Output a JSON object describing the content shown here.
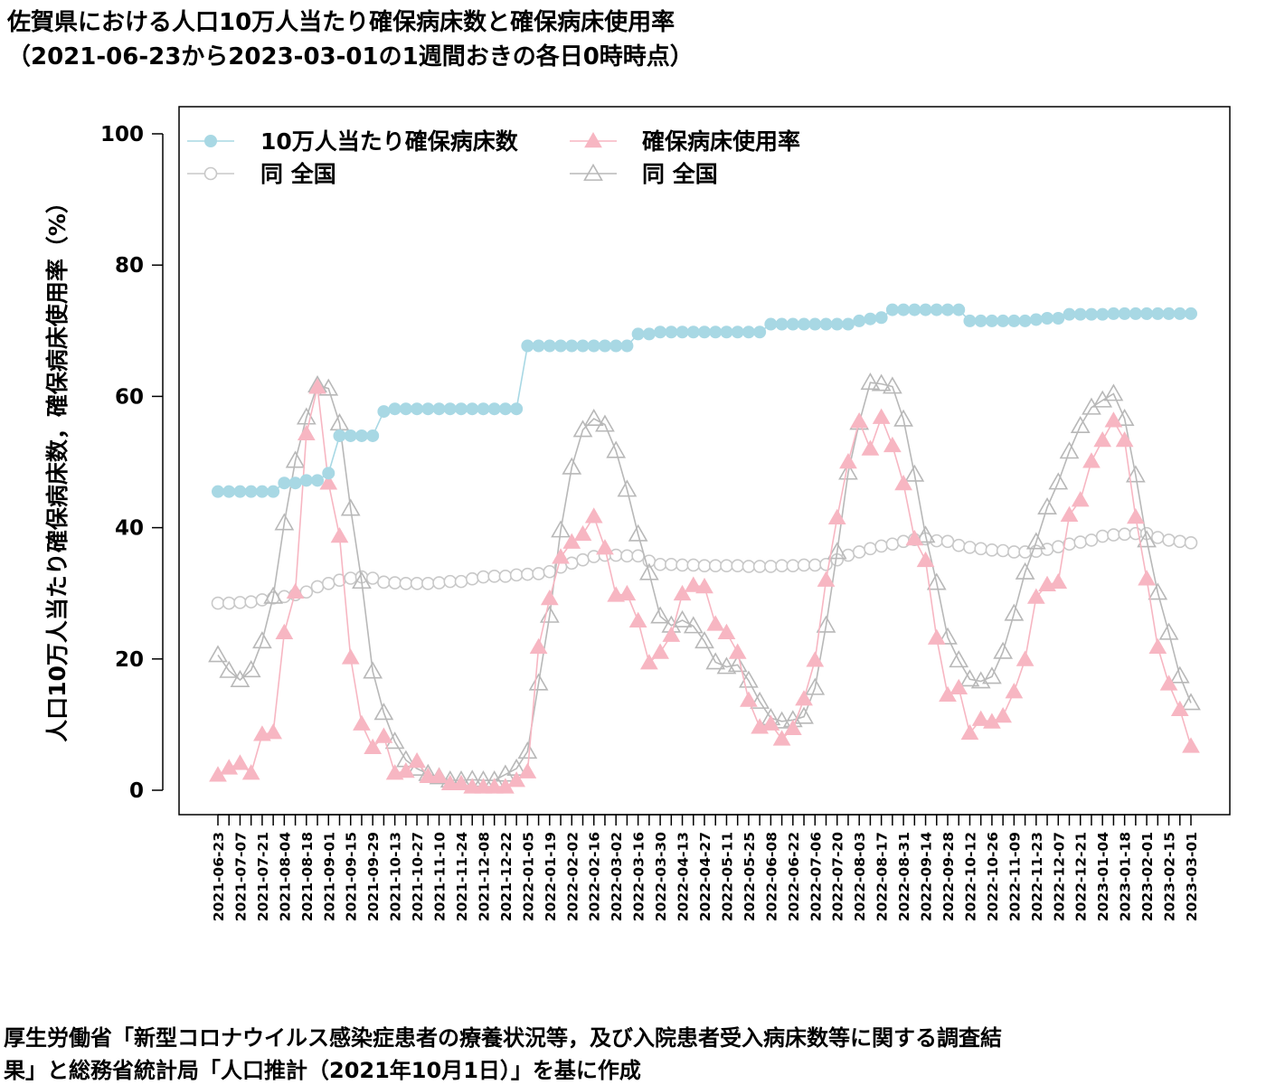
{
  "header": {
    "title_line1": "佐賀県における人口10万人当たり確保病床数と確保病床使用率",
    "title_line2": "（2021-06-23から2023-03-01の1週間おきの各日0時時点）"
  },
  "footer": {
    "source_line1": "厚生労働省「新型コロナウイルス感染症患者の療養状況等，及び入院患者受入病床数等に関する調査結",
    "source_line2": "果」と総務省統計局「人口推計（2021年10月1日）」を基に作成"
  },
  "chart_data": {
    "type": "line",
    "ylabel": "人口10万人当たり確保病床数，確保病床使用率（%）",
    "ylim": [
      0,
      100
    ],
    "yticks": [
      0,
      20,
      40,
      60,
      80,
      100
    ],
    "grid": false,
    "legend_position": "top-left",
    "x_tick_labels": [
      "2021-06-23",
      "2021-07-07",
      "2021-07-21",
      "2021-08-04",
      "2021-08-18",
      "2021-09-01",
      "2021-09-15",
      "2021-09-29",
      "2021-10-13",
      "2021-10-27",
      "2021-11-10",
      "2021-11-24",
      "2021-12-08",
      "2021-12-22",
      "2022-01-05",
      "2022-01-19",
      "2022-02-02",
      "2022-02-16",
      "2022-03-02",
      "2022-03-16",
      "2022-03-30",
      "2022-04-13",
      "2022-04-27",
      "2022-05-11",
      "2022-05-25",
      "2022-06-08",
      "2022-06-22",
      "2022-07-06",
      "2022-07-20",
      "2022-08-03",
      "2022-08-17",
      "2022-08-31",
      "2022-09-14",
      "2022-09-28",
      "2022-10-12",
      "2022-10-26",
      "2022-11-09",
      "2022-11-23",
      "2022-12-07",
      "2022-12-21",
      "2023-01-04",
      "2023-01-18",
      "2023-02-01",
      "2023-02-15",
      "2023-03-01"
    ],
    "x": [
      "2021-06-23",
      "2021-06-30",
      "2021-07-07",
      "2021-07-14",
      "2021-07-21",
      "2021-07-28",
      "2021-08-04",
      "2021-08-11",
      "2021-08-18",
      "2021-08-25",
      "2021-09-01",
      "2021-09-08",
      "2021-09-15",
      "2021-09-22",
      "2021-09-29",
      "2021-10-06",
      "2021-10-13",
      "2021-10-20",
      "2021-10-27",
      "2021-11-03",
      "2021-11-10",
      "2021-11-17",
      "2021-11-24",
      "2021-12-01",
      "2021-12-08",
      "2021-12-15",
      "2021-12-22",
      "2021-12-29",
      "2022-01-05",
      "2022-01-12",
      "2022-01-19",
      "2022-01-26",
      "2022-02-02",
      "2022-02-09",
      "2022-02-16",
      "2022-02-23",
      "2022-03-02",
      "2022-03-09",
      "2022-03-16",
      "2022-03-23",
      "2022-03-30",
      "2022-04-06",
      "2022-04-13",
      "2022-04-20",
      "2022-04-27",
      "2022-05-04",
      "2022-05-11",
      "2022-05-18",
      "2022-05-25",
      "2022-06-01",
      "2022-06-08",
      "2022-06-15",
      "2022-06-22",
      "2022-06-29",
      "2022-07-06",
      "2022-07-13",
      "2022-07-20",
      "2022-07-27",
      "2022-08-03",
      "2022-08-10",
      "2022-08-17",
      "2022-08-24",
      "2022-08-31",
      "2022-09-07",
      "2022-09-14",
      "2022-09-21",
      "2022-09-28",
      "2022-10-05",
      "2022-10-12",
      "2022-10-19",
      "2022-10-26",
      "2022-11-02",
      "2022-11-09",
      "2022-11-16",
      "2022-11-23",
      "2022-11-30",
      "2022-12-07",
      "2022-12-14",
      "2022-12-21",
      "2022-12-28",
      "2023-01-04",
      "2023-01-11",
      "2023-01-18",
      "2023-01-25",
      "2023-02-01",
      "2023-02-08",
      "2023-02-15",
      "2023-02-22",
      "2023-03-01"
    ],
    "series": [
      {
        "name": "10万人当たり確保病床数",
        "color": "#a8d8e4",
        "marker": "circle-filled",
        "values": [
          45.5,
          45.5,
          45.5,
          45.5,
          45.5,
          45.5,
          46.8,
          46.8,
          47.2,
          47.2,
          48.3,
          54,
          54,
          54,
          54,
          57.7,
          58.1,
          58.1,
          58.1,
          58.1,
          58.1,
          58.1,
          58.1,
          58.1,
          58.1,
          58.1,
          58.1,
          58.1,
          67.7,
          67.7,
          67.7,
          67.7,
          67.7,
          67.7,
          67.7,
          67.7,
          67.7,
          67.7,
          69.5,
          69.5,
          69.8,
          69.8,
          69.8,
          69.8,
          69.8,
          69.8,
          69.8,
          69.8,
          69.8,
          69.8,
          71,
          71,
          71,
          71,
          71,
          71,
          71,
          71,
          71.5,
          71.8,
          72,
          73.2,
          73.2,
          73.2,
          73.2,
          73.2,
          73.2,
          73.2,
          71.5,
          71.5,
          71.5,
          71.5,
          71.5,
          71.5,
          71.7,
          71.9,
          71.9,
          72.5,
          72.5,
          72.5,
          72.5,
          72.6,
          72.6,
          72.6,
          72.6,
          72.6,
          72.6,
          72.6,
          72.6
        ]
      },
      {
        "name": "確保病床使用率",
        "color": "#f7b6c2",
        "marker": "triangle-filled",
        "values": [
          2.3,
          3.4,
          4.1,
          2.6,
          8.5,
          8.8,
          24,
          30.2,
          54.3,
          61.4,
          46.8,
          38.7,
          20.2,
          10.1,
          6.5,
          8.2,
          2.6,
          2.9,
          4.4,
          2.1,
          2.1,
          1,
          1,
          0.5,
          0.5,
          0.5,
          0.5,
          1.5,
          2.8,
          21.8,
          29.2,
          35.5,
          37.8,
          39,
          41.7,
          36.9,
          29.7,
          29.9,
          25.8,
          19.4,
          21,
          23.6,
          29.9,
          31.2,
          31,
          25.3,
          24,
          21,
          13.7,
          9.6,
          10.1,
          7.8,
          9.4,
          13.9,
          19.8,
          32,
          41.5,
          50,
          56.2,
          52,
          56.8,
          52.5,
          46.7,
          38.3,
          35,
          23.2,
          14.5,
          15.6,
          8.7,
          10.8,
          10.4,
          11.3,
          15,
          19.9,
          29.4,
          31.3,
          31.7,
          41.9,
          44.2,
          50.1,
          53.3,
          56.3,
          53.3,
          41.6,
          32.2,
          21.8,
          16.2,
          12.3,
          6.7
        ]
      },
      {
        "name": "同 全国",
        "color": "#c8c8c8",
        "marker": "circle-open",
        "values": [
          28.5,
          28.5,
          28.6,
          28.7,
          29,
          29.3,
          29.5,
          29.8,
          30.2,
          31,
          31.5,
          32,
          32.3,
          32.5,
          32.3,
          31.7,
          31.6,
          31.5,
          31.5,
          31.5,
          31.6,
          31.8,
          31.8,
          32.2,
          32.5,
          32.6,
          32.6,
          32.8,
          32.9,
          33,
          33.3,
          34,
          34.6,
          35.1,
          35.6,
          35.8,
          35.8,
          35.7,
          35.7,
          34.9,
          34.4,
          34.4,
          34.3,
          34.3,
          34.2,
          34.2,
          34.2,
          34.2,
          34.1,
          34.1,
          34.1,
          34.2,
          34.2,
          34.3,
          34.3,
          34.4,
          35.1,
          35.8,
          36.3,
          36.8,
          37.2,
          37.5,
          37.9,
          38.2,
          38.3,
          38,
          37.9,
          37.3,
          37,
          36.8,
          36.6,
          36.5,
          36.3,
          36.3,
          36.4,
          36.7,
          37.1,
          37.5,
          37.8,
          38.1,
          38.7,
          38.9,
          39,
          39.1,
          39.1,
          38.5,
          38.1,
          37.9,
          37.7
        ]
      },
      {
        "name": "同 全国",
        "color": "#b8b8b8",
        "marker": "triangle-open",
        "values": [
          20.6,
          18.2,
          16.8,
          18.3,
          22.7,
          29.5,
          40.7,
          50.2,
          56.8,
          61.7,
          61.2,
          55.9,
          42.9,
          31.8,
          18.1,
          11.8,
          7.4,
          4.6,
          3.3,
          2.5,
          2,
          1.5,
          1.5,
          1.6,
          1.5,
          1.5,
          2.4,
          3.3,
          5.9,
          16.3,
          26.6,
          39.6,
          49.2,
          54.9,
          56.6,
          55.7,
          51.7,
          45.8,
          39,
          33.1,
          26.5,
          25.1,
          25.9,
          25,
          22.7,
          19.5,
          18.8,
          19.1,
          16.7,
          13.5,
          11,
          10.5,
          10.7,
          11.2,
          15.6,
          25.1,
          36.3,
          48.4,
          56,
          62.1,
          61.9,
          61.5,
          56.5,
          48.1,
          38.8,
          31.6,
          23.3,
          19.8,
          16.9,
          16.6,
          17.3,
          21.1,
          26.9,
          33.2,
          37.8,
          43.1,
          46.9,
          51.6,
          55.5,
          58.3,
          59.4,
          60.4,
          56.6,
          48,
          38.1,
          30.1,
          24,
          17.4,
          13.3
        ]
      }
    ]
  }
}
